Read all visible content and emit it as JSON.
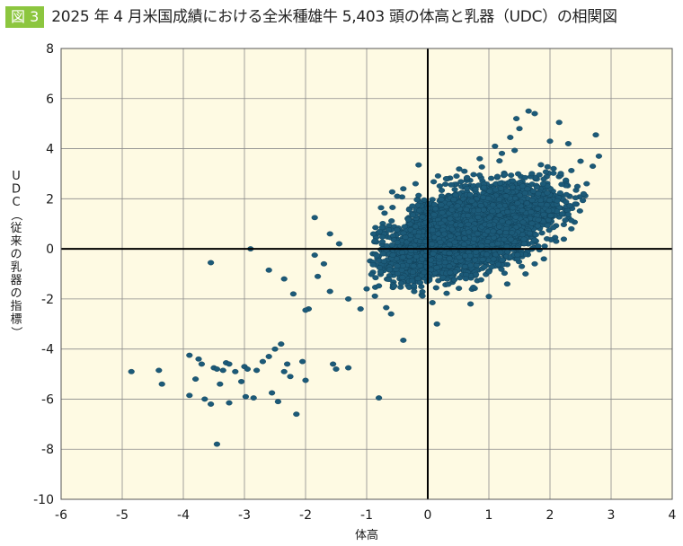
{
  "figure": {
    "badge": "図 3",
    "title": "2025 年 4 月米国成績における全米種雄牛 5,403 頭の体高と乳器（UDC）の相関図"
  },
  "chart_data": {
    "type": "scatter",
    "title": "2025 年 4 月米国成績における全米種雄牛 5,403 頭の体高と乳器（UDC）の相関図",
    "xlabel": "体高",
    "ylabel": "UDC（従来の乳器の指標）",
    "xlim": [
      -6,
      4
    ],
    "ylim": [
      -10,
      8
    ],
    "x_ticks": [
      -6,
      -5,
      -4,
      -3,
      -2,
      -1,
      0,
      1,
      2,
      3,
      4
    ],
    "y_ticks": [
      -10,
      -8,
      -6,
      -4,
      -2,
      0,
      2,
      4,
      6,
      8
    ],
    "grid": true,
    "n_points": 5403,
    "colors": {
      "plot_background": "#fefae3",
      "marker": "#1c5a78",
      "grid": "#8a8a8a",
      "zero_lines": "#000000"
    },
    "outlier_points": [
      {
        "x": -4.85,
        "y": -4.9
      },
      {
        "x": -4.4,
        "y": -4.85
      },
      {
        "x": -4.35,
        "y": -5.4
      },
      {
        "x": -3.9,
        "y": -4.25
      },
      {
        "x": -3.9,
        "y": -5.85
      },
      {
        "x": -3.8,
        "y": -5.2
      },
      {
        "x": -3.75,
        "y": -4.4
      },
      {
        "x": -3.7,
        "y": -4.6
      },
      {
        "x": -3.65,
        "y": -6.0
      },
      {
        "x": -3.55,
        "y": -6.2
      },
      {
        "x": -3.5,
        "y": -4.75
      },
      {
        "x": -3.45,
        "y": -4.8
      },
      {
        "x": -3.45,
        "y": -7.8
      },
      {
        "x": -3.4,
        "y": -5.4
      },
      {
        "x": -3.35,
        "y": -4.85
      },
      {
        "x": -3.3,
        "y": -4.55
      },
      {
        "x": -3.25,
        "y": -4.6
      },
      {
        "x": -3.25,
        "y": -6.15
      },
      {
        "x": -3.15,
        "y": -4.9
      },
      {
        "x": -3.05,
        "y": -5.3
      },
      {
        "x": -3.0,
        "y": -4.7
      },
      {
        "x": -2.98,
        "y": -5.9
      },
      {
        "x": -2.95,
        "y": -4.8
      },
      {
        "x": -2.85,
        "y": -5.95
      },
      {
        "x": -2.8,
        "y": -4.85
      },
      {
        "x": -2.7,
        "y": -4.5
      },
      {
        "x": -2.6,
        "y": -4.3
      },
      {
        "x": -2.55,
        "y": -5.75
      },
      {
        "x": -2.5,
        "y": -4.0
      },
      {
        "x": -2.45,
        "y": -6.1
      },
      {
        "x": -2.4,
        "y": -3.8
      },
      {
        "x": -2.35,
        "y": -4.9
      },
      {
        "x": -2.3,
        "y": -4.6
      },
      {
        "x": -2.25,
        "y": -5.1
      },
      {
        "x": -2.15,
        "y": -6.6
      },
      {
        "x": -2.05,
        "y": -4.5
      },
      {
        "x": -2.0,
        "y": -5.25
      },
      {
        "x": -1.95,
        "y": -2.4
      },
      {
        "x": -1.55,
        "y": -4.6
      },
      {
        "x": -1.5,
        "y": -4.8
      },
      {
        "x": -1.3,
        "y": -4.75
      },
      {
        "x": -0.8,
        "y": -5.95
      },
      {
        "x": -0.4,
        "y": -3.65
      },
      {
        "x": 0.15,
        "y": -3.0
      },
      {
        "x": -3.55,
        "y": -0.55
      },
      {
        "x": -2.9,
        "y": 0.0
      },
      {
        "x": -2.6,
        "y": -0.85
      },
      {
        "x": -2.35,
        "y": -1.2
      },
      {
        "x": -2.2,
        "y": -1.8
      },
      {
        "x": -2.0,
        "y": -2.45
      },
      {
        "x": -1.85,
        "y": -0.25
      },
      {
        "x": -1.8,
        "y": -1.1
      },
      {
        "x": -1.7,
        "y": -0.6
      },
      {
        "x": -1.6,
        "y": -1.7
      },
      {
        "x": -1.85,
        "y": 1.25
      },
      {
        "x": -1.6,
        "y": 0.6
      },
      {
        "x": -1.45,
        "y": 0.2
      },
      {
        "x": -1.3,
        "y": -2.0
      },
      {
        "x": -1.1,
        "y": -2.4
      },
      {
        "x": -1.0,
        "y": -1.6
      },
      {
        "x": -0.6,
        "y": -2.6
      },
      {
        "x": -0.5,
        "y": 2.1
      },
      {
        "x": -0.2,
        "y": 2.6
      },
      {
        "x": -0.4,
        "y": 2.4
      },
      {
        "x": 0.3,
        "y": 2.8
      },
      {
        "x": 0.6,
        "y": 3.1
      },
      {
        "x": 0.85,
        "y": 3.6
      },
      {
        "x": 1.1,
        "y": 4.1
      },
      {
        "x": 1.35,
        "y": 4.45
      },
      {
        "x": 1.65,
        "y": 5.5
      },
      {
        "x": 1.75,
        "y": 5.4
      },
      {
        "x": 1.45,
        "y": 5.2
      },
      {
        "x": 2.15,
        "y": 5.05
      },
      {
        "x": 2.75,
        "y": 4.55
      },
      {
        "x": 2.5,
        "y": 3.5
      },
      {
        "x": 2.8,
        "y": 3.7
      },
      {
        "x": 2.6,
        "y": 2.6
      },
      {
        "x": 2.55,
        "y": 2.2
      },
      {
        "x": 2.7,
        "y": 3.3
      },
      {
        "x": 2.2,
        "y": 1.4
      },
      {
        "x": 2.35,
        "y": 0.8
      },
      {
        "x": 2.1,
        "y": 0.3
      },
      {
        "x": 1.9,
        "y": -0.4
      },
      {
        "x": 1.75,
        "y": -0.6
      },
      {
        "x": 1.6,
        "y": -1.0
      },
      {
        "x": 1.3,
        "y": -1.4
      },
      {
        "x": 1.0,
        "y": -1.9
      },
      {
        "x": 0.7,
        "y": -2.2
      },
      {
        "x": -0.15,
        "y": 3.35
      },
      {
        "x": 1.5,
        "y": 4.8
      },
      {
        "x": 2.0,
        "y": 4.3
      },
      {
        "x": 2.3,
        "y": 4.2
      }
    ],
    "dense_cluster": {
      "count": 5310,
      "x_mean": 0.65,
      "y_mean": 0.7,
      "x_sd": 0.62,
      "y_sd": 0.85,
      "correlation": 0.5
    }
  }
}
